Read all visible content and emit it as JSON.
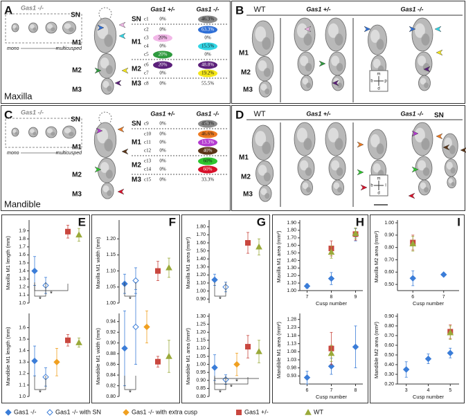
{
  "panel_a": {
    "letter": "A",
    "inset_title": "Gas1 -/-",
    "inset_left": "mono",
    "inset_right": "multicusped",
    "jaw": "Maxilla",
    "tooth_labels": [
      "SN",
      "M1",
      "M2",
      "M3"
    ],
    "table": {
      "headers": [
        "Gas1 +/-",
        "Gas1 -/-"
      ],
      "groups": [
        {
          "region": "SN",
          "rows": [
            {
              "cusp": "c1",
              "het": "0%",
              "ko": "46.3%",
              "ko_color": "#8a8a8a"
            }
          ]
        },
        {
          "region": "M1",
          "rows": [
            {
              "cusp": "c2",
              "het": "0%",
              "ko": "63.3%",
              "ko_color": "#2f6fd6"
            },
            {
              "cusp": "c3",
              "het": "20%",
              "ko": "0%",
              "het_color": "#f2b8e8"
            },
            {
              "cusp": "c4",
              "het": "0%",
              "ko": "15.5%",
              "ko_color": "#33d6e6"
            },
            {
              "cusp": "c5",
              "het": "20%",
              "ko": "0%",
              "het_color": "#2e9a3e"
            }
          ]
        },
        {
          "region": "M2",
          "rows": [
            {
              "cusp": "c6",
              "het": "20%",
              "ko": "48.8%",
              "het_color": "#5b1f7a",
              "ko_color": "#5b1f7a"
            },
            {
              "cusp": "c7",
              "het": "0%",
              "ko": "19.2%",
              "ko_color": "#f4e61a"
            }
          ]
        },
        {
          "region": "M3",
          "rows": [
            {
              "cusp": "c8",
              "het": "0%",
              "ko": "55.5%"
            }
          ]
        }
      ]
    }
  },
  "panel_b": {
    "letter": "B",
    "columns": [
      "WT",
      "Gas1 +/-",
      "Gas1 -/-"
    ],
    "tooth_labels": [
      "M1",
      "M2",
      "M3"
    ],
    "compass": [
      "m",
      "b",
      "p",
      "d"
    ]
  },
  "panel_c": {
    "letter": "C",
    "inset_title": "Gas1 -/-",
    "inset_left": "mono",
    "inset_right": "multicusped",
    "jaw": "Mandible",
    "tooth_labels": [
      "SN",
      "M1",
      "M2",
      "M3"
    ],
    "table": {
      "headers": [
        "Gas1 +/-",
        "Gas1 -/-"
      ],
      "groups": [
        {
          "region": "SN",
          "rows": [
            {
              "cusp": "c9",
              "het": "0%",
              "ko": "45.3%",
              "ko_color": "#8a8a8a"
            }
          ]
        },
        {
          "region": "M1",
          "rows": [
            {
              "cusp": "c10",
              "het": "0%",
              "ko": "46.6%",
              "ko_color": "#ee7a22"
            },
            {
              "cusp": "c11",
              "het": "0%",
              "ko": "13.3%",
              "ko_color": "#b43ad0"
            },
            {
              "cusp": "c12",
              "het": "0%",
              "ko": "40%",
              "ko_color": "#5a3518"
            }
          ]
        },
        {
          "region": "M2",
          "rows": [
            {
              "cusp": "c13",
              "het": "0%",
              "ko": "60%",
              "ko_color": "#2fc52f"
            },
            {
              "cusp": "c14",
              "het": "0%",
              "ko": "60%",
              "ko_color": "#d8102a"
            }
          ]
        },
        {
          "region": "M3",
          "rows": [
            {
              "cusp": "c15",
              "het": "0%",
              "ko": "33.3%"
            }
          ]
        }
      ]
    }
  },
  "panel_d": {
    "letter": "D",
    "columns": [
      "WT",
      "Gas1 +/-",
      "Gas1 -/-"
    ],
    "tooth_labels": [
      "M1",
      "M2",
      "M3"
    ],
    "sn_label": "SN",
    "compass": [
      "m",
      "b",
      "l",
      "d"
    ]
  },
  "legend": [
    {
      "name": "Gas1 -/-",
      "color": "#3b7dd8",
      "fill": "#3b7dd8",
      "marker": "diamond"
    },
    {
      "name": "Gas1 -/- with SN",
      "color": "#3b7dd8",
      "fill": "#ffffff",
      "marker": "diamond"
    },
    {
      "name": "Gas1 -/- with extra cusp",
      "color": "#f0a020",
      "fill": "#f0a020",
      "marker": "diamond"
    },
    {
      "name": "Gas1 +/-",
      "color": "#c9473f",
      "fill": "#c9473f",
      "marker": "square"
    },
    {
      "name": "WT",
      "color": "#9aaa3a",
      "fill": "#9aaa3a",
      "marker": "triangle"
    }
  ],
  "chart_data": [
    {
      "type": "scatter",
      "label": "E",
      "ylabel": "Maxilla M1 length (mm)",
      "ylim": [
        1.0,
        2.0
      ],
      "yticks": [
        {
          "value": 1,
          "label": "1.0"
        },
        1.1,
        1.2,
        1.3,
        1.4,
        1.5,
        1.6,
        1.7,
        1.8,
        1.9
      ],
      "series": [
        {
          "values": [
            1.4
          ],
          "errors": [
            0.18
          ]
        },
        {
          "values": [
            1.22
          ],
          "errors": [
            0.1
          ]
        },
        {
          "values": [
            null
          ],
          "errors": [
            null
          ]
        },
        {
          "values": [
            1.89
          ],
          "errors": [
            0.08
          ]
        },
        {
          "values": [
            1.85
          ],
          "errors": [
            0.08
          ]
        }
      ],
      "annotations": [
        "*",
        "*"
      ]
    },
    {
      "type": "scatter",
      "ylabel": "Mandible M1 length (mm)",
      "ylim": [
        1.0,
        1.7
      ],
      "yticks": [
        {
          "value": 1,
          "label": "1.0"
        },
        1.1,
        1.2,
        1.3,
        1.4,
        1.5,
        1.6
      ],
      "series": [
        {
          "values": [
            1.31
          ],
          "errors": [
            0.13
          ]
        },
        {
          "values": [
            1.17
          ],
          "errors": [
            0.08
          ]
        },
        {
          "values": [
            1.3
          ],
          "errors": [
            0.12
          ]
        },
        {
          "values": [
            1.49
          ],
          "errors": [
            0.05
          ]
        },
        {
          "values": [
            1.47
          ],
          "errors": [
            0.04
          ]
        }
      ],
      "annotations": [
        "*"
      ]
    },
    {
      "type": "scatter",
      "label": "F",
      "ylabel": "Maxilla M1 width (mm)",
      "ylim": [
        1.0,
        1.25
      ],
      "yticks": [
        {
          "value": 1,
          "label": "1.00"
        },
        1.05,
        {
          "value": 1.1,
          "label": "1.10"
        },
        1.15,
        {
          "value": 1.2,
          "label": "1.20"
        }
      ],
      "series": [
        {
          "values": [
            1.06
          ],
          "errors": [
            0.03
          ]
        },
        {
          "values": [
            1.07
          ],
          "errors": [
            0.04
          ]
        },
        {
          "values": [
            null
          ],
          "errors": [
            null
          ]
        },
        {
          "values": [
            1.1
          ],
          "errors": [
            0.03
          ]
        },
        {
          "values": [
            1.11
          ],
          "errors": [
            0.03
          ]
        }
      ],
      "annotations": [
        "*"
      ]
    },
    {
      "type": "scatter",
      "ylabel": "Mandible M1 width (mm)",
      "ylim": [
        0.8,
        0.95
      ],
      "yticks": [
        {
          "value": 0.8,
          "label": "0.80"
        },
        0.82,
        0.84,
        0.86,
        0.88,
        {
          "value": 0.9,
          "label": "0.90"
        },
        0.92,
        0.94
      ],
      "series": [
        {
          "values": [
            0.89
          ],
          "errors": [
            0.07
          ]
        },
        {
          "values": [
            0.93
          ],
          "errors": [
            0.07
          ]
        },
        {
          "values": [
            0.93
          ],
          "errors": [
            0.03
          ]
        },
        {
          "values": [
            0.865
          ],
          "errors": [
            0.01
          ]
        },
        {
          "values": [
            0.875
          ],
          "errors": [
            0.03
          ]
        }
      ],
      "annotations": [
        "*"
      ]
    },
    {
      "type": "scatter",
      "label": "G",
      "ylabel": "Maxilla M1 area (mm²)",
      "ylim": [
        0.85,
        1.85
      ],
      "yticks": [
        {
          "value": 0.9,
          "label": "0.90"
        },
        {
          "value": 1,
          "label": "1.00"
        },
        {
          "value": 1.1,
          "label": "1.10"
        },
        {
          "value": 1.2,
          "label": "1.20"
        },
        {
          "value": 1.3,
          "label": "1.30"
        },
        {
          "value": 1.4,
          "label": "1.40"
        },
        {
          "value": 1.5,
          "label": "1.50"
        },
        {
          "value": 1.6,
          "label": "1.60"
        },
        {
          "value": 1.7,
          "label": "1.70"
        },
        {
          "value": 1.8,
          "label": "1.80"
        }
      ],
      "series": [
        {
          "values": [
            1.14
          ],
          "errors": [
            0.07
          ]
        },
        {
          "values": [
            1.05
          ],
          "errors": [
            0.06
          ]
        },
        {
          "values": [
            null
          ],
          "errors": [
            null
          ]
        },
        {
          "values": [
            1.6
          ],
          "errors": [
            0.13
          ]
        },
        {
          "values": [
            1.55
          ],
          "errors": [
            0.1
          ]
        }
      ],
      "annotations": [
        "*"
      ]
    },
    {
      "type": "scatter",
      "ylabel": "Mandible M1 area (mm²)",
      "ylim": [
        0.8,
        1.3
      ],
      "yticks": [
        {
          "value": 0.8,
          "label": "0.80"
        },
        0.85,
        {
          "value": 0.9,
          "label": "0.90"
        },
        0.95,
        {
          "value": 1,
          "label": "1.00"
        },
        1.05,
        {
          "value": 1.1,
          "label": "1.10"
        },
        1.15,
        {
          "value": 1.2,
          "label": "1.20"
        },
        1.25,
        {
          "value": 1.3,
          "label": "1.30"
        }
      ],
      "series": [
        {
          "values": [
            0.98
          ],
          "errors": [
            0.08
          ]
        },
        {
          "values": [
            0.905
          ],
          "errors": [
            0.03
          ]
        },
        {
          "values": [
            1.0
          ],
          "errors": [
            0.07
          ]
        },
        {
          "values": [
            1.11
          ],
          "errors": [
            0.07
          ]
        },
        {
          "values": [
            1.08
          ],
          "errors": [
            0.07
          ]
        }
      ],
      "annotations": [
        "*",
        "*",
        "*"
      ]
    },
    {
      "type": "scatter",
      "label": "H",
      "ylabel": "Maxilla M1 area (mm²)",
      "xlabel": "Cusp number",
      "x": [
        7,
        8,
        9
      ],
      "xlim": [
        6.7,
        9.3
      ],
      "xticks": [
        7,
        8,
        9
      ],
      "ylim": [
        1.0,
        1.9
      ],
      "yticks": [
        {
          "value": 1,
          "label": "1.00"
        },
        {
          "value": 1.1,
          "label": "1.10"
        },
        {
          "value": 1.2,
          "label": "1.20"
        },
        {
          "value": 1.3,
          "label": "1.30"
        },
        {
          "value": 1.4,
          "label": "1.40"
        },
        {
          "value": 1.5,
          "label": "1.50"
        },
        {
          "value": 1.6,
          "label": "1.60"
        },
        {
          "value": 1.7,
          "label": "1.70"
        },
        {
          "value": 1.8,
          "label": "1.80"
        },
        {
          "value": 1.9,
          "label": "1.90"
        }
      ],
      "series": [
        {
          "values": [
            1.06,
            1.16,
            1.74
          ],
          "errors": [
            0.03,
            0.08,
            0.08
          ]
        },
        {
          "values": [
            null,
            null,
            null
          ],
          "errors": [
            null,
            null,
            null
          ]
        },
        {
          "values": [
            null,
            null,
            null
          ],
          "errors": [
            null,
            null,
            null
          ]
        },
        {
          "values": [
            null,
            1.56,
            1.75
          ],
          "errors": [
            null,
            0.1,
            0.08
          ]
        },
        {
          "values": [
            null,
            1.51,
            1.76
          ],
          "errors": [
            null,
            0.08,
            0.07
          ]
        }
      ]
    },
    {
      "type": "scatter",
      "ylabel": "Mandible M1 area (mm²)",
      "xlabel": "Cusp number",
      "x": [
        6,
        7,
        8
      ],
      "xlim": [
        5.7,
        8.3
      ],
      "xticks": [
        6,
        7,
        8
      ],
      "ylim": [
        0.88,
        1.3
      ],
      "yticks": [
        0.93,
        0.98,
        1.03,
        1.08,
        1.13,
        1.18,
        1.23,
        1.28
      ],
      "series": [
        {
          "values": [
            0.92,
            0.99,
            1.11
          ],
          "errors": [
            0.04,
            0.05,
            0.13
          ]
        },
        {
          "values": [
            null,
            null,
            null
          ],
          "errors": [
            null,
            null,
            null
          ]
        },
        {
          "values": [
            null,
            null,
            null
          ],
          "errors": [
            null,
            null,
            null
          ]
        },
        {
          "values": [
            null,
            1.1,
            null
          ],
          "errors": [
            null,
            0.1,
            null
          ]
        },
        {
          "values": [
            null,
            1.07,
            null
          ],
          "errors": [
            null,
            0.05,
            null
          ]
        }
      ]
    },
    {
      "type": "scatter",
      "label": "I",
      "ylabel": "Maxilla M2 area (mm²)",
      "xlabel": "Cusp number",
      "x": [
        6,
        7
      ],
      "xlim": [
        5.5,
        7.5
      ],
      "xticks": [
        6,
        7
      ],
      "ylim": [
        0.45,
        1.0
      ],
      "yticks": [
        {
          "value": 0.5,
          "label": "0.50"
        },
        {
          "value": 0.6,
          "label": "0.60"
        },
        {
          "value": 0.7,
          "label": "0.70"
        },
        {
          "value": 0.8,
          "label": "0.80"
        },
        {
          "value": 0.9,
          "label": "0.90"
        },
        {
          "value": 1,
          "label": "1.00"
        }
      ],
      "series": [
        {
          "values": [
            0.55,
            0.58
          ],
          "errors": [
            0.06,
            0.01
          ]
        },
        {
          "values": [
            null,
            null
          ],
          "errors": [
            null,
            null
          ]
        },
        {
          "values": [
            null,
            null
          ],
          "errors": [
            null,
            null
          ]
        },
        {
          "values": [
            0.84,
            null
          ],
          "errors": [
            0.06,
            null
          ]
        },
        {
          "values": [
            0.83,
            null
          ],
          "errors": [
            0.06,
            null
          ]
        }
      ]
    },
    {
      "type": "scatter",
      "ylabel": "Mandible M2 area (mm²)",
      "xlabel": "Cusp number",
      "x": [
        3,
        4,
        5
      ],
      "xlim": [
        2.6,
        5.4
      ],
      "xticks": [
        3,
        4,
        5
      ],
      "ylim": [
        0.2,
        0.9
      ],
      "yticks": [
        {
          "value": 0.2,
          "label": "0.20"
        },
        {
          "value": 0.3,
          "label": "0.30"
        },
        {
          "value": 0.4,
          "label": "0.40"
        },
        {
          "value": 0.5,
          "label": "0.50"
        },
        {
          "value": 0.6,
          "label": "0.60"
        },
        {
          "value": 0.7,
          "label": "0.70"
        },
        {
          "value": 0.8,
          "label": "0.80"
        },
        {
          "value": 0.9,
          "label": "0.90"
        }
      ],
      "series": [
        {
          "values": [
            0.35,
            0.46,
            0.52
          ],
          "errors": [
            0.08,
            0.05,
            0.05
          ]
        },
        {
          "values": [
            null,
            null,
            null
          ],
          "errors": [
            null,
            null,
            null
          ]
        },
        {
          "values": [
            null,
            null,
            null
          ],
          "errors": [
            null,
            null,
            null
          ]
        },
        {
          "values": [
            null,
            null,
            0.74
          ],
          "errors": [
            null,
            null,
            0.07
          ]
        },
        {
          "values": [
            null,
            null,
            0.73
          ],
          "errors": [
            null,
            null,
            0.07
          ]
        }
      ]
    }
  ]
}
